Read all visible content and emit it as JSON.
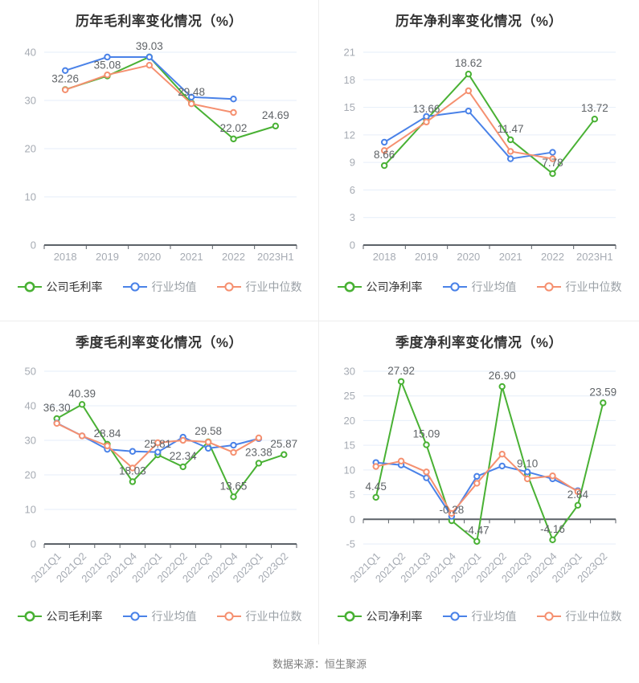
{
  "page": {
    "footer_note": "数据来源：恒生聚源"
  },
  "colors": {
    "company": "#49b134",
    "mean": "#4a82e8",
    "median": "#f59070",
    "grid_line": "#e6eef9",
    "axis_line": "#5c6268",
    "tick_label": "#a6abb3",
    "value_label": "#606468",
    "title": "#333333",
    "legend_secondary": "#9aa0a6"
  },
  "chart_data": [
    {
      "type": "line",
      "title": "历年毛利率变化情况（%）",
      "categories": [
        "2018",
        "2019",
        "2020",
        "2021",
        "2022",
        "2023H1"
      ],
      "ylim": [
        0,
        40
      ],
      "ystep": 10,
      "rotate_x_labels": false,
      "grid": true,
      "legend_position": "bottom",
      "series": [
        {
          "name": "公司毛利率",
          "role": "company",
          "labeled": true,
          "values": [
            32.26,
            35.08,
            39.03,
            29.48,
            22.02,
            24.69
          ]
        },
        {
          "name": "行业均值",
          "role": "mean",
          "labeled": false,
          "values": [
            36.2,
            39.0,
            39.0,
            30.7,
            30.3,
            null
          ]
        },
        {
          "name": "行业中位数",
          "role": "median",
          "labeled": false,
          "values": [
            32.2,
            35.3,
            37.3,
            29.3,
            27.5,
            null
          ]
        }
      ]
    },
    {
      "type": "line",
      "title": "历年净利率变化情况（%）",
      "categories": [
        "2018",
        "2019",
        "2020",
        "2021",
        "2022",
        "2023H1"
      ],
      "ylim": [
        0,
        21
      ],
      "ystep": 3,
      "rotate_x_labels": false,
      "grid": true,
      "legend_position": "bottom",
      "series": [
        {
          "name": "公司净利率",
          "role": "company",
          "labeled": true,
          "values": [
            8.66,
            13.66,
            18.62,
            11.47,
            7.78,
            13.72
          ]
        },
        {
          "name": "行业均值",
          "role": "mean",
          "labeled": false,
          "values": [
            11.2,
            14.0,
            14.6,
            9.4,
            10.1,
            null
          ]
        },
        {
          "name": "行业中位数",
          "role": "median",
          "labeled": false,
          "values": [
            10.3,
            13.4,
            16.8,
            10.2,
            9.4,
            null
          ]
        }
      ]
    },
    {
      "type": "line",
      "title": "季度毛利率变化情况（%）",
      "categories": [
        "2021Q1",
        "2021Q2",
        "2021Q3",
        "2021Q4",
        "2022Q1",
        "2022Q2",
        "2022Q3",
        "2022Q4",
        "2023Q1",
        "2023Q2"
      ],
      "ylim": [
        0,
        50
      ],
      "ystep": 10,
      "rotate_x_labels": true,
      "grid": true,
      "legend_position": "bottom",
      "series": [
        {
          "name": "公司毛利率",
          "role": "company",
          "labeled": true,
          "values": [
            36.3,
            40.39,
            28.84,
            18.03,
            25.81,
            22.34,
            29.58,
            13.65,
            23.38,
            25.87
          ]
        },
        {
          "name": "行业均值",
          "role": "mean",
          "labeled": false,
          "values": [
            35.0,
            31.3,
            27.4,
            26.8,
            26.6,
            30.9,
            27.7,
            28.6,
            30.5,
            null
          ]
        },
        {
          "name": "行业中位数",
          "role": "median",
          "labeled": false,
          "values": [
            34.9,
            31.3,
            28.4,
            22.0,
            29.3,
            30.0,
            29.5,
            26.5,
            30.7,
            null
          ]
        }
      ]
    },
    {
      "type": "line",
      "title": "季度净利率变化情况（%）",
      "categories": [
        "2021Q1",
        "2021Q2",
        "2021Q3",
        "2021Q4",
        "2022Q1",
        "2022Q2",
        "2022Q3",
        "2022Q4",
        "2023Q1",
        "2023Q2"
      ],
      "ylim": [
        -5,
        30
      ],
      "ystep": 5,
      "rotate_x_labels": true,
      "grid": true,
      "legend_position": "bottom",
      "series": [
        {
          "name": "公司净利率",
          "role": "company",
          "labeled": true,
          "values": [
            4.45,
            27.92,
            15.09,
            -0.28,
            -4.47,
            26.9,
            9.1,
            -4.16,
            2.84,
            23.59
          ]
        },
        {
          "name": "行业均值",
          "role": "mean",
          "labeled": false,
          "values": [
            11.5,
            11.0,
            8.4,
            0.6,
            8.7,
            10.8,
            9.6,
            8.2,
            5.8,
            null
          ]
        },
        {
          "name": "行业中位数",
          "role": "median",
          "labeled": false,
          "values": [
            10.7,
            11.8,
            9.6,
            1.2,
            7.3,
            13.2,
            8.2,
            8.8,
            5.6,
            null
          ]
        }
      ]
    }
  ]
}
